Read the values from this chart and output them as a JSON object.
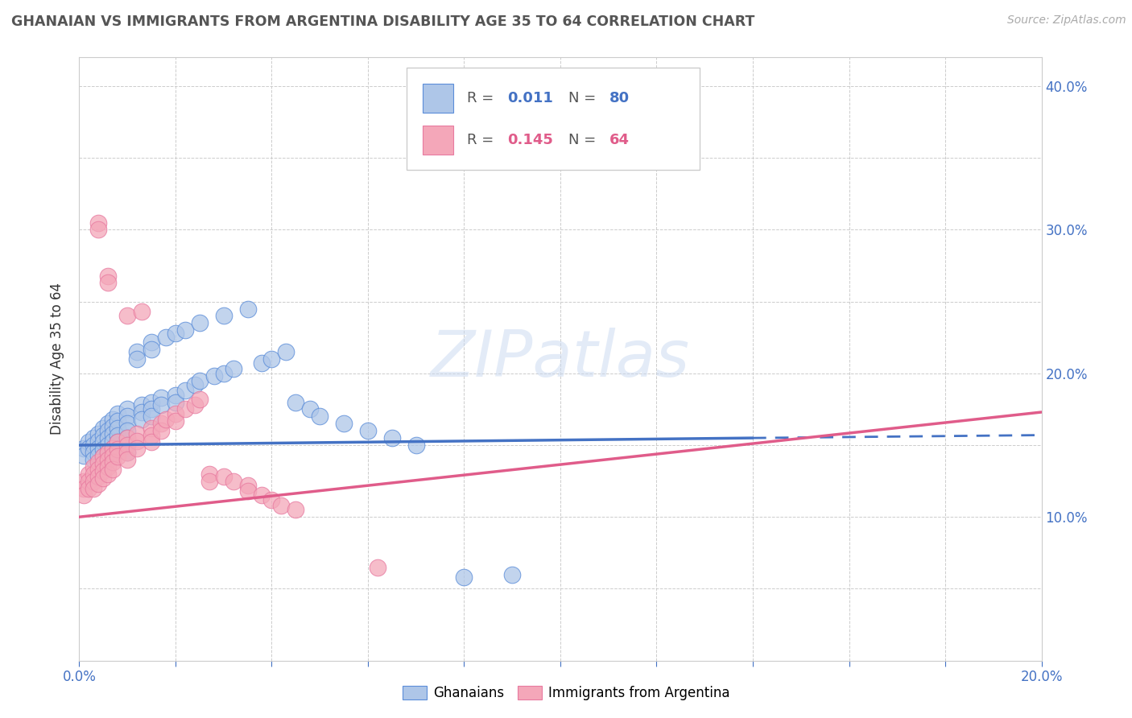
{
  "title": "GHANAIAN VS IMMIGRANTS FROM ARGENTINA DISABILITY AGE 35 TO 64 CORRELATION CHART",
  "source": "Source: ZipAtlas.com",
  "ylabel_label": "Disability Age 35 to 64",
  "xlim": [
    0.0,
    0.2
  ],
  "ylim": [
    0.0,
    0.42
  ],
  "xticks": [
    0.0,
    0.02,
    0.04,
    0.06,
    0.08,
    0.1,
    0.12,
    0.14,
    0.16,
    0.18,
    0.2
  ],
  "yticks": [
    0.0,
    0.05,
    0.1,
    0.15,
    0.2,
    0.25,
    0.3,
    0.35,
    0.4
  ],
  "xtick_labels": [
    "0.0%",
    "",
    "",
    "",
    "",
    "",
    "",
    "",
    "",
    "",
    "20.0%"
  ],
  "ytick_labels": [
    "",
    "",
    "10.0%",
    "",
    "20.0%",
    "",
    "30.0%",
    "",
    "40.0%"
  ],
  "ghanaian_color": "#aec6e8",
  "argentina_color": "#f4a7b9",
  "ghanaian_edge_color": "#5b8dd9",
  "argentina_edge_color": "#e87aa0",
  "ghanaian_line_color": "#4472c4",
  "argentina_line_color": "#e05c8a",
  "R_ghanaian": 0.011,
  "N_ghanaian": 80,
  "R_argentina": 0.145,
  "N_argentina": 64,
  "background_color": "#ffffff",
  "ghanaian_scatter": [
    [
      0.001,
      0.148
    ],
    [
      0.001,
      0.143
    ],
    [
      0.002,
      0.152
    ],
    [
      0.002,
      0.148
    ],
    [
      0.003,
      0.155
    ],
    [
      0.003,
      0.15
    ],
    [
      0.003,
      0.145
    ],
    [
      0.003,
      0.14
    ],
    [
      0.004,
      0.158
    ],
    [
      0.004,
      0.153
    ],
    [
      0.004,
      0.148
    ],
    [
      0.004,
      0.143
    ],
    [
      0.005,
      0.162
    ],
    [
      0.005,
      0.157
    ],
    [
      0.005,
      0.152
    ],
    [
      0.005,
      0.147
    ],
    [
      0.005,
      0.142
    ],
    [
      0.006,
      0.165
    ],
    [
      0.006,
      0.16
    ],
    [
      0.006,
      0.155
    ],
    [
      0.006,
      0.15
    ],
    [
      0.006,
      0.145
    ],
    [
      0.006,
      0.14
    ],
    [
      0.007,
      0.168
    ],
    [
      0.007,
      0.163
    ],
    [
      0.007,
      0.158
    ],
    [
      0.007,
      0.153
    ],
    [
      0.007,
      0.148
    ],
    [
      0.007,
      0.143
    ],
    [
      0.008,
      0.172
    ],
    [
      0.008,
      0.167
    ],
    [
      0.008,
      0.162
    ],
    [
      0.008,
      0.157
    ],
    [
      0.008,
      0.152
    ],
    [
      0.008,
      0.147
    ],
    [
      0.01,
      0.175
    ],
    [
      0.01,
      0.17
    ],
    [
      0.01,
      0.165
    ],
    [
      0.01,
      0.16
    ],
    [
      0.01,
      0.155
    ],
    [
      0.01,
      0.15
    ],
    [
      0.01,
      0.145
    ],
    [
      0.012,
      0.215
    ],
    [
      0.012,
      0.21
    ],
    [
      0.013,
      0.178
    ],
    [
      0.013,
      0.173
    ],
    [
      0.013,
      0.168
    ],
    [
      0.015,
      0.222
    ],
    [
      0.015,
      0.217
    ],
    [
      0.015,
      0.18
    ],
    [
      0.015,
      0.175
    ],
    [
      0.015,
      0.17
    ],
    [
      0.017,
      0.183
    ],
    [
      0.017,
      0.178
    ],
    [
      0.018,
      0.225
    ],
    [
      0.02,
      0.228
    ],
    [
      0.02,
      0.185
    ],
    [
      0.02,
      0.18
    ],
    [
      0.022,
      0.23
    ],
    [
      0.022,
      0.188
    ],
    [
      0.024,
      0.192
    ],
    [
      0.025,
      0.235
    ],
    [
      0.025,
      0.195
    ],
    [
      0.028,
      0.198
    ],
    [
      0.03,
      0.24
    ],
    [
      0.03,
      0.2
    ],
    [
      0.032,
      0.203
    ],
    [
      0.035,
      0.245
    ],
    [
      0.038,
      0.207
    ],
    [
      0.04,
      0.21
    ],
    [
      0.043,
      0.215
    ],
    [
      0.045,
      0.18
    ],
    [
      0.048,
      0.175
    ],
    [
      0.05,
      0.17
    ],
    [
      0.055,
      0.165
    ],
    [
      0.06,
      0.16
    ],
    [
      0.065,
      0.155
    ],
    [
      0.07,
      0.15
    ],
    [
      0.08,
      0.058
    ],
    [
      0.09,
      0.06
    ]
  ],
  "argentina_scatter": [
    [
      0.001,
      0.125
    ],
    [
      0.001,
      0.12
    ],
    [
      0.001,
      0.115
    ],
    [
      0.002,
      0.13
    ],
    [
      0.002,
      0.125
    ],
    [
      0.002,
      0.12
    ],
    [
      0.003,
      0.135
    ],
    [
      0.003,
      0.13
    ],
    [
      0.003,
      0.125
    ],
    [
      0.003,
      0.12
    ],
    [
      0.004,
      0.305
    ],
    [
      0.004,
      0.3
    ],
    [
      0.004,
      0.138
    ],
    [
      0.004,
      0.133
    ],
    [
      0.004,
      0.128
    ],
    [
      0.004,
      0.123
    ],
    [
      0.005,
      0.142
    ],
    [
      0.005,
      0.137
    ],
    [
      0.005,
      0.132
    ],
    [
      0.005,
      0.127
    ],
    [
      0.006,
      0.268
    ],
    [
      0.006,
      0.263
    ],
    [
      0.006,
      0.145
    ],
    [
      0.006,
      0.14
    ],
    [
      0.006,
      0.135
    ],
    [
      0.006,
      0.13
    ],
    [
      0.007,
      0.148
    ],
    [
      0.007,
      0.143
    ],
    [
      0.007,
      0.138
    ],
    [
      0.007,
      0.133
    ],
    [
      0.008,
      0.152
    ],
    [
      0.008,
      0.147
    ],
    [
      0.008,
      0.142
    ],
    [
      0.01,
      0.24
    ],
    [
      0.01,
      0.155
    ],
    [
      0.01,
      0.15
    ],
    [
      0.01,
      0.145
    ],
    [
      0.01,
      0.14
    ],
    [
      0.012,
      0.158
    ],
    [
      0.012,
      0.153
    ],
    [
      0.012,
      0.148
    ],
    [
      0.013,
      0.243
    ],
    [
      0.015,
      0.162
    ],
    [
      0.015,
      0.157
    ],
    [
      0.015,
      0.152
    ],
    [
      0.017,
      0.165
    ],
    [
      0.017,
      0.16
    ],
    [
      0.018,
      0.168
    ],
    [
      0.02,
      0.172
    ],
    [
      0.02,
      0.167
    ],
    [
      0.022,
      0.175
    ],
    [
      0.024,
      0.178
    ],
    [
      0.025,
      0.182
    ],
    [
      0.027,
      0.13
    ],
    [
      0.027,
      0.125
    ],
    [
      0.03,
      0.128
    ],
    [
      0.032,
      0.125
    ],
    [
      0.035,
      0.122
    ],
    [
      0.035,
      0.118
    ],
    [
      0.038,
      0.115
    ],
    [
      0.04,
      0.112
    ],
    [
      0.042,
      0.108
    ],
    [
      0.045,
      0.105
    ],
    [
      0.062,
      0.065
    ]
  ]
}
